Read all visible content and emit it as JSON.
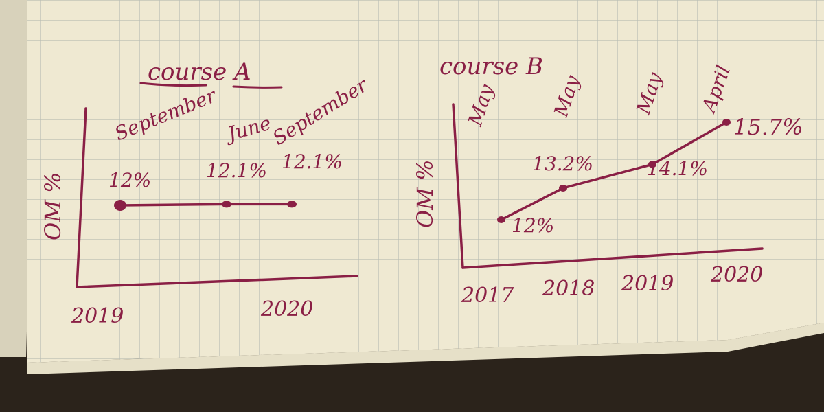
{
  "palette": {
    "paper": "#efe9d2",
    "grid": "#b3b8b0",
    "ink": "#8a1f45",
    "desk": "#2b231b"
  },
  "chart_data": [
    {
      "type": "line",
      "title": "course A",
      "ylabel": "OM %",
      "x_ticks": [
        "2019",
        "2020"
      ],
      "points": [
        {
          "value_label": "12%",
          "date_label": ""
        },
        {
          "value_label": "12.1%",
          "date_label": "June"
        },
        {
          "value_label": "12.1%",
          "date_label": "September"
        }
      ],
      "values": [
        12,
        12.1,
        12.1
      ],
      "top_annotation": "September",
      "grid": true
    },
    {
      "type": "line",
      "title": "course B",
      "ylabel": "OM %",
      "x_ticks": [
        "2017",
        "2018",
        "2019",
        "2020"
      ],
      "month_labels": [
        "May",
        "May",
        "May",
        "April"
      ],
      "points": [
        {
          "value_label": "12%"
        },
        {
          "value_label": "13.2%"
        },
        {
          "value_label": "14.1%"
        },
        {
          "value_label": "15.7%"
        }
      ],
      "values": [
        12,
        13.2,
        14.1,
        15.7
      ],
      "grid": true
    }
  ]
}
